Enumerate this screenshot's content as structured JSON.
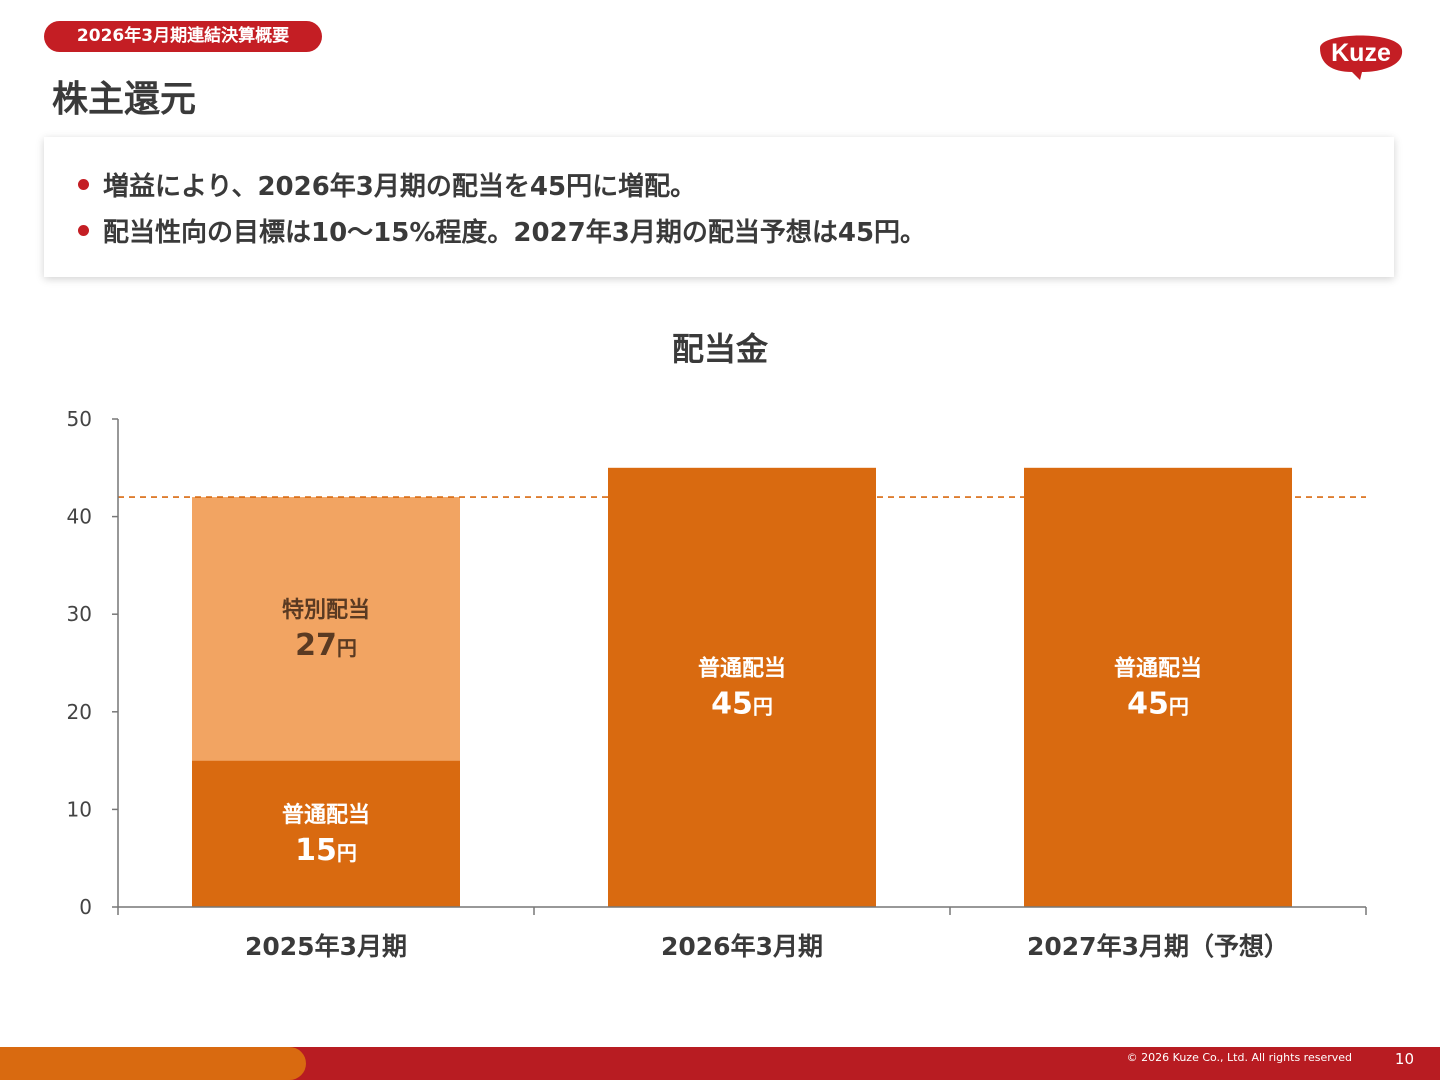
{
  "header": {
    "badge": "2026年3月期連結決算概要",
    "title": "株主還元",
    "logo_text": "Kuze"
  },
  "summary": {
    "bullets": [
      "増益により、2026年3月期の配当を45円に増配。",
      "配当性向の目標は10～15%程度。2027年3月期の配当予想は45円。"
    ]
  },
  "chart_data": {
    "type": "bar",
    "stacked": true,
    "title": "配当金",
    "categories": [
      "2025年3月期",
      "2026年3月期",
      "2027年3月期（予想）"
    ],
    "series": [
      {
        "name": "普通配当",
        "values": [
          15,
          45,
          45
        ],
        "color": "#d96a10"
      },
      {
        "name": "特別配当",
        "values": [
          27,
          0,
          0
        ],
        "color": "#f2a462"
      }
    ],
    "data_labels": [
      {
        "category": 0,
        "series": 0,
        "name": "普通配当",
        "value": "15",
        "unit": "円"
      },
      {
        "category": 0,
        "series": 1,
        "name": "特別配当",
        "value": "27",
        "unit": "円"
      },
      {
        "category": 1,
        "series": 0,
        "name": "普通配当",
        "value": "45",
        "unit": "円"
      },
      {
        "category": 2,
        "series": 0,
        "name": "普通配当",
        "value": "45",
        "unit": "円"
      }
    ],
    "reference_line": {
      "value": 42,
      "style": "dashed",
      "color": "#d96a10"
    },
    "ylim": [
      0,
      50
    ],
    "yticks": [
      0,
      10,
      20,
      30,
      40,
      50
    ],
    "xlabel": "",
    "ylabel": "",
    "grid": false,
    "legend": "none"
  },
  "footer": {
    "copyright": "© 2026 Kuze Co., Ltd. All rights reserved",
    "page_number": "10"
  },
  "colors": {
    "brand_red": "#c41e24",
    "footer_red": "#b81c22",
    "orange": "#d96a10",
    "light_orange": "#f2a462",
    "text_dark": "#3a3a3a",
    "axis": "#777777"
  }
}
